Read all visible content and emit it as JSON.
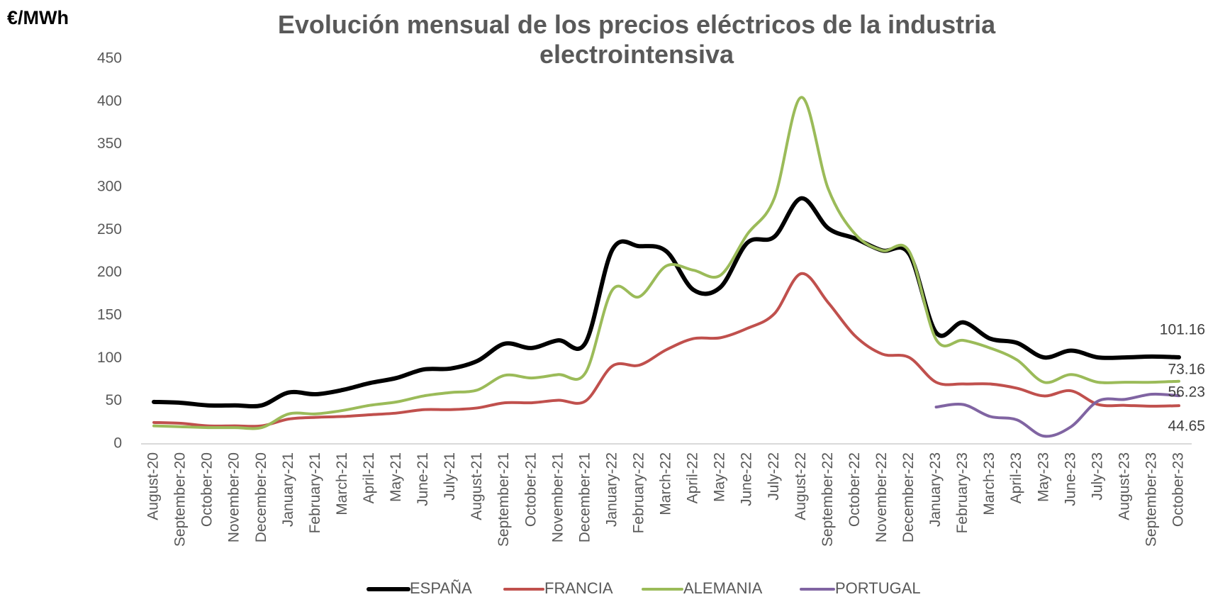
{
  "chart_data": {
    "type": "line",
    "title": "Evolución mensual de los precios eléctricos de la industria electrointensiva",
    "y_label": "€/MWh",
    "categories": [
      "August-20",
      "September-20",
      "October-20",
      "November-20",
      "December-20",
      "January-21",
      "February-21",
      "March-21",
      "April-21",
      "May-21",
      "June-21",
      "July-21",
      "August-21",
      "September-21",
      "October-21",
      "November-21",
      "December-21",
      "January-22",
      "February-22",
      "March-22",
      "April-22",
      "May-22",
      "June-22",
      "July-22",
      "August-22",
      "September-22",
      "October-22",
      "November-22",
      "December-22",
      "January-23",
      "February-23",
      "March-23",
      "April-23",
      "May-23",
      "June-23",
      "July-23",
      "August-23",
      "September-23",
      "October-23"
    ],
    "series": [
      {
        "name": "ESPAÑA",
        "color": "#000000",
        "values": [
          49,
          48,
          45,
          45,
          45,
          60,
          58,
          63,
          71,
          77,
          87,
          88,
          97,
          117,
          112,
          121,
          118,
          227,
          231,
          225,
          180,
          183,
          235,
          242,
          287,
          252,
          240,
          226,
          222,
          130,
          142,
          123,
          118,
          101,
          109,
          101,
          101,
          102,
          101.16
        ]
      },
      {
        "name": "FRANCIA",
        "color": "#c0504d",
        "values": [
          25,
          24,
          21,
          21,
          21,
          29,
          31,
          32,
          34,
          36,
          40,
          40,
          42,
          48,
          48,
          51,
          50,
          91,
          92,
          110,
          123,
          124,
          135,
          152,
          199,
          165,
          126,
          105,
          101,
          72,
          70,
          70,
          65,
          56,
          62,
          46,
          45,
          44,
          44.65
        ]
      },
      {
        "name": "ALEMANIA",
        "color": "#9bbb59",
        "values": [
          21,
          20,
          19,
          19,
          19,
          35,
          35,
          39,
          45,
          49,
          56,
          60,
          63,
          80,
          77,
          81,
          83,
          180,
          172,
          208,
          203,
          197,
          245,
          287,
          405,
          298,
          245,
          226,
          225,
          122,
          121,
          112,
          98,
          72,
          81,
          72,
          72,
          72,
          73.16
        ]
      },
      {
        "name": "PORTUGAL",
        "color": "#8064a2",
        "values": [
          null,
          null,
          null,
          null,
          null,
          null,
          null,
          null,
          null,
          null,
          null,
          null,
          null,
          null,
          null,
          null,
          null,
          null,
          null,
          null,
          null,
          null,
          null,
          null,
          null,
          null,
          null,
          null,
          null,
          43,
          46,
          32,
          28,
          9,
          20,
          50,
          52,
          58,
          56.23
        ]
      }
    ],
    "ylim": [
      0,
      450
    ],
    "yticks": [
      0,
      50,
      100,
      150,
      200,
      250,
      300,
      350,
      400,
      450
    ],
    "grid": false
  }
}
